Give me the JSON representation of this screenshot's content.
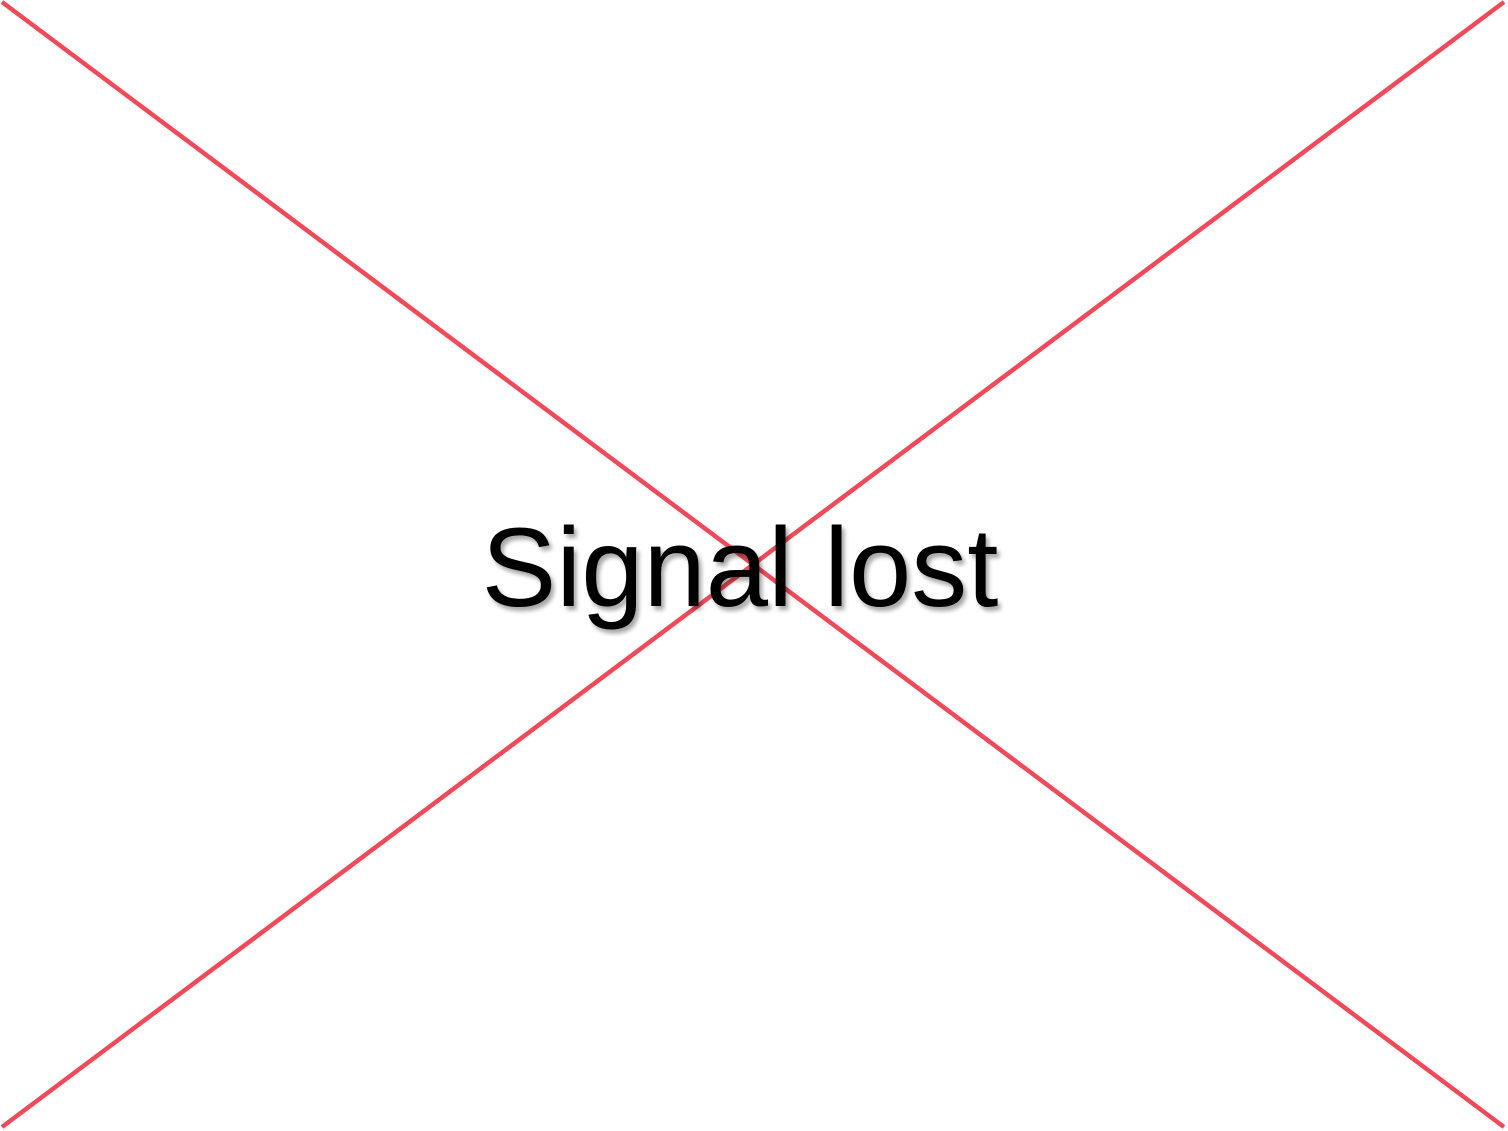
{
  "message": {
    "text": "Signal lost"
  },
  "placeholder": {
    "icon": "broken-image-cross-icon",
    "cross_color": "#f04a5a",
    "background_color": "#ffffff",
    "text_color": "#000000"
  }
}
